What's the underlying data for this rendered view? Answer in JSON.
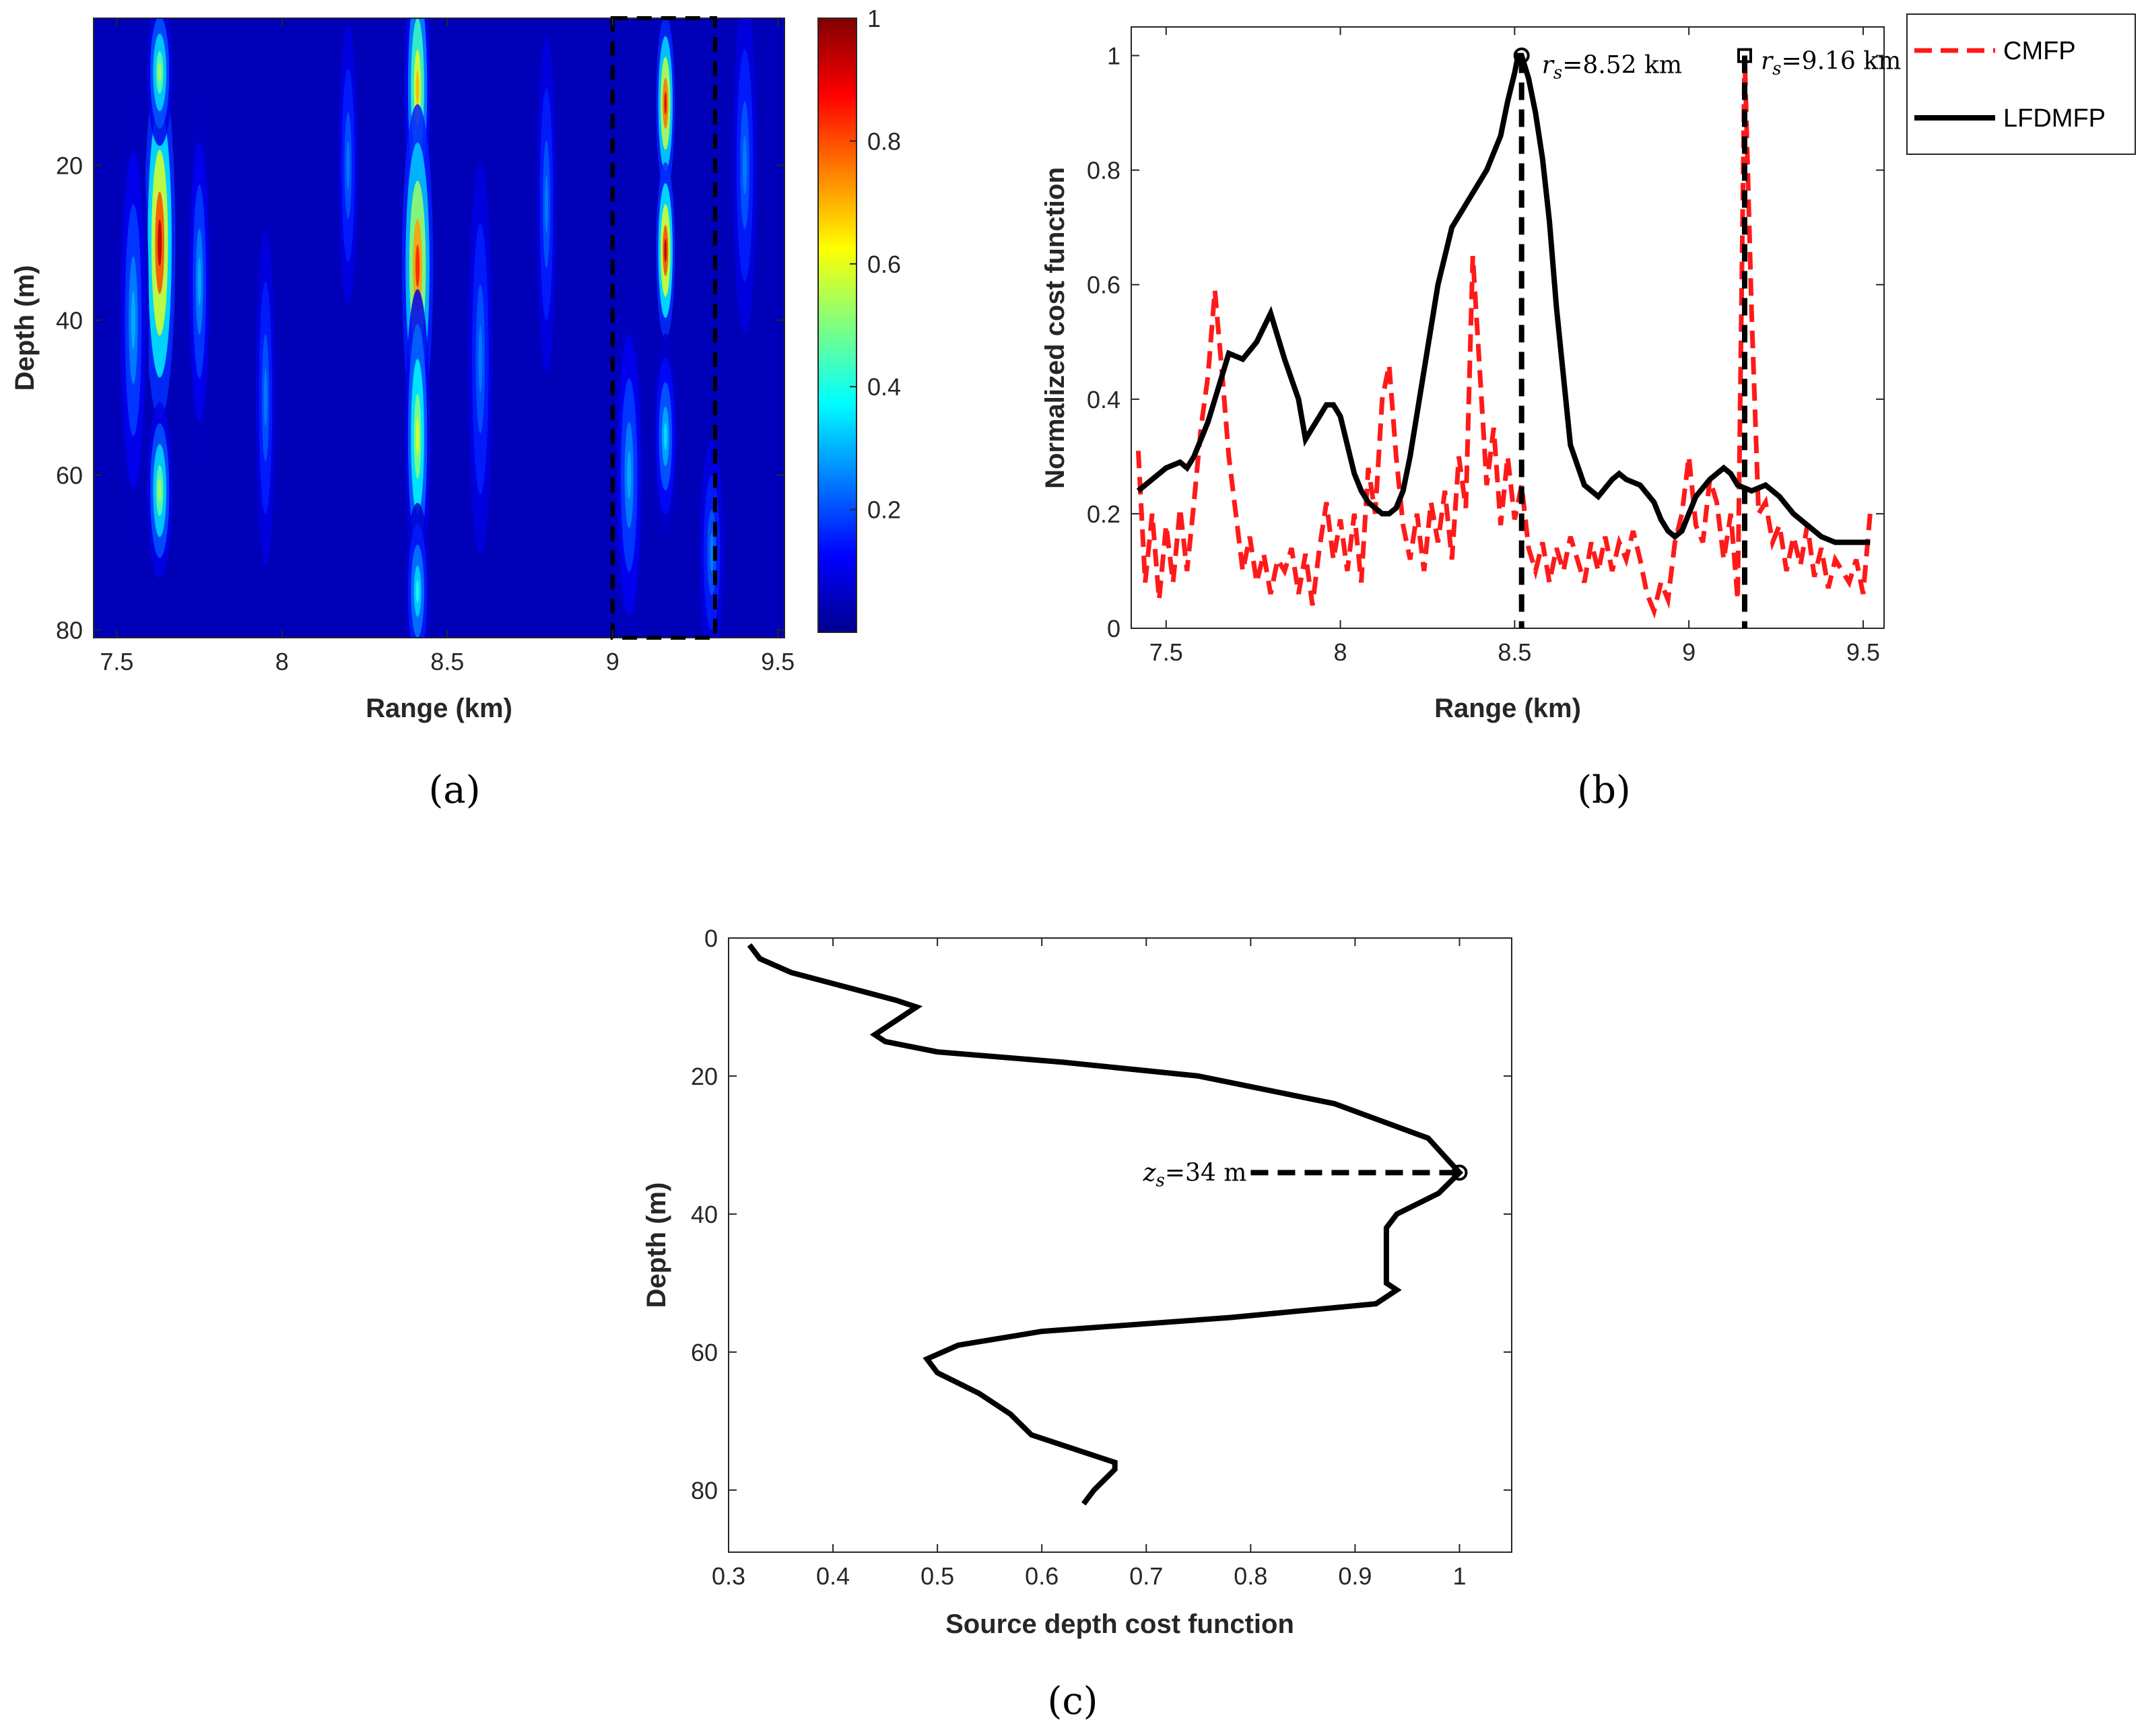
{
  "chart_data": [
    {
      "type": "heatmap",
      "panel_label": "(a)",
      "xlabel": "Range (km)",
      "ylabel": "Depth (m)",
      "xlim": [
        7.43,
        9.52
      ],
      "ylim": [
        81,
        1
      ],
      "xticks": [
        7.5,
        8,
        8.5,
        9,
        9.5
      ],
      "yticks": [
        20,
        40,
        60,
        80
      ],
      "colorbar": {
        "ticks": [
          0.2,
          0.4,
          0.6,
          0.8,
          1
        ],
        "range": [
          0,
          1
        ],
        "colormap": "jet"
      },
      "highlight_box": {
        "x_range": [
          9.0,
          9.31
        ],
        "depth_range": [
          1,
          81
        ]
      },
      "features": [
        {
          "range_km": 7.63,
          "depth_m": 30,
          "depth_span_m": 24,
          "range_span_km": 0.05,
          "value": 0.95
        },
        {
          "range_km": 7.63,
          "depth_m": 8,
          "depth_span_m": 10,
          "range_span_km": 0.04,
          "value": 0.55
        },
        {
          "range_km": 7.63,
          "depth_m": 62,
          "depth_span_m": 12,
          "range_span_km": 0.04,
          "value": 0.55
        },
        {
          "range_km": 8.41,
          "depth_m": 10,
          "depth_span_m": 18,
          "range_span_km": 0.04,
          "value": 0.7
        },
        {
          "range_km": 8.41,
          "depth_m": 33,
          "depth_span_m": 22,
          "range_span_km": 0.05,
          "value": 0.85
        },
        {
          "range_km": 8.41,
          "depth_m": 55,
          "depth_span_m": 20,
          "range_span_km": 0.04,
          "value": 0.6
        },
        {
          "range_km": 8.41,
          "depth_m": 75,
          "depth_span_m": 12,
          "range_span_km": 0.04,
          "value": 0.4
        },
        {
          "range_km": 9.16,
          "depth_m": 12,
          "depth_span_m": 12,
          "range_span_km": 0.03,
          "value": 0.9
        },
        {
          "range_km": 9.16,
          "depth_m": 31,
          "depth_span_m": 12,
          "range_span_km": 0.03,
          "value": 0.95
        },
        {
          "range_km": 9.16,
          "depth_m": 55,
          "depth_span_m": 14,
          "range_span_km": 0.04,
          "value": 0.35
        },
        {
          "range_km": 7.55,
          "depth_m": 40,
          "depth_span_m": 30,
          "range_span_km": 0.05,
          "value": 0.3
        },
        {
          "range_km": 7.75,
          "depth_m": 35,
          "depth_span_m": 25,
          "range_span_km": 0.04,
          "value": 0.3
        },
        {
          "range_km": 7.95,
          "depth_m": 50,
          "depth_span_m": 30,
          "range_span_km": 0.04,
          "value": 0.25
        },
        {
          "range_km": 8.2,
          "depth_m": 20,
          "depth_span_m": 25,
          "range_span_km": 0.04,
          "value": 0.25
        },
        {
          "range_km": 8.6,
          "depth_m": 45,
          "depth_span_m": 35,
          "range_span_km": 0.05,
          "value": 0.25
        },
        {
          "range_km": 8.8,
          "depth_m": 25,
          "depth_span_m": 30,
          "range_span_km": 0.04,
          "value": 0.25
        },
        {
          "range_km": 9.05,
          "depth_m": 60,
          "depth_span_m": 25,
          "range_span_km": 0.05,
          "value": 0.3
        },
        {
          "range_km": 9.4,
          "depth_m": 20,
          "depth_span_m": 30,
          "range_span_km": 0.05,
          "value": 0.25
        },
        {
          "range_km": 9.3,
          "depth_m": 70,
          "depth_span_m": 20,
          "range_span_km": 0.05,
          "value": 0.25
        }
      ]
    },
    {
      "type": "line",
      "panel_label": "(b)",
      "xlabel": "Range (km)",
      "ylabel": "Normalized cost function",
      "xlim": [
        7.4,
        9.56
      ],
      "ylim": [
        0,
        1.05
      ],
      "xticks": [
        7.5,
        8,
        8.5,
        9,
        9.5
      ],
      "yticks": [
        0,
        0.2,
        0.4,
        0.6,
        0.8,
        1
      ],
      "legend": "outside-top-right",
      "series": [
        {
          "name": "CMFP",
          "style": "dashed",
          "color": "#ff1a1a",
          "x": [
            7.42,
            7.44,
            7.46,
            7.48,
            7.5,
            7.52,
            7.54,
            7.56,
            7.58,
            7.6,
            7.62,
            7.64,
            7.66,
            7.68,
            7.7,
            7.72,
            7.74,
            7.76,
            7.78,
            7.8,
            7.82,
            7.84,
            7.86,
            7.88,
            7.9,
            7.92,
            7.94,
            7.96,
            7.98,
            8.0,
            8.02,
            8.04,
            8.06,
            8.08,
            8.1,
            8.12,
            8.14,
            8.16,
            8.18,
            8.2,
            8.22,
            8.24,
            8.26,
            8.28,
            8.3,
            8.32,
            8.34,
            8.36,
            8.38,
            8.4,
            8.42,
            8.44,
            8.46,
            8.48,
            8.5,
            8.52,
            8.54,
            8.56,
            8.58,
            8.6,
            8.62,
            8.64,
            8.66,
            8.68,
            8.7,
            8.72,
            8.74,
            8.76,
            8.78,
            8.8,
            8.82,
            8.84,
            8.86,
            8.88,
            8.9,
            8.92,
            8.94,
            8.96,
            8.98,
            9.0,
            9.02,
            9.04,
            9.06,
            9.08,
            9.1,
            9.12,
            9.14,
            9.16,
            9.18,
            9.2,
            9.22,
            9.24,
            9.26,
            9.28,
            9.3,
            9.32,
            9.34,
            9.36,
            9.38,
            9.4,
            9.42,
            9.44,
            9.46,
            9.48,
            9.5,
            9.52
          ],
          "values": [
            0.31,
            0.08,
            0.2,
            0.05,
            0.18,
            0.08,
            0.21,
            0.1,
            0.22,
            0.35,
            0.44,
            0.59,
            0.45,
            0.3,
            0.2,
            0.1,
            0.16,
            0.08,
            0.13,
            0.06,
            0.12,
            0.1,
            0.14,
            0.06,
            0.13,
            0.04,
            0.14,
            0.22,
            0.12,
            0.19,
            0.1,
            0.2,
            0.08,
            0.28,
            0.2,
            0.4,
            0.46,
            0.3,
            0.18,
            0.12,
            0.2,
            0.1,
            0.22,
            0.15,
            0.24,
            0.12,
            0.3,
            0.21,
            0.65,
            0.45,
            0.25,
            0.35,
            0.18,
            0.3,
            0.19,
            0.25,
            0.14,
            0.1,
            0.15,
            0.08,
            0.14,
            0.1,
            0.16,
            0.12,
            0.08,
            0.15,
            0.1,
            0.16,
            0.1,
            0.15,
            0.12,
            0.17,
            0.12,
            0.06,
            0.03,
            0.08,
            0.05,
            0.15,
            0.2,
            0.3,
            0.18,
            0.15,
            0.26,
            0.22,
            0.12,
            0.2,
            0.05,
            1.0,
            0.55,
            0.2,
            0.22,
            0.15,
            0.18,
            0.1,
            0.16,
            0.11,
            0.18,
            0.09,
            0.14,
            0.07,
            0.12,
            0.1,
            0.08,
            0.12,
            0.06,
            0.2
          ]
        },
        {
          "name": "LFDMFP",
          "style": "solid",
          "color": "#000000",
          "x": [
            7.42,
            7.46,
            7.5,
            7.54,
            7.56,
            7.58,
            7.62,
            7.66,
            7.68,
            7.72,
            7.76,
            7.8,
            7.84,
            7.88,
            7.9,
            7.92,
            7.94,
            7.96,
            7.98,
            8.0,
            8.02,
            8.04,
            8.06,
            8.08,
            8.1,
            8.12,
            8.14,
            8.16,
            8.18,
            8.2,
            8.24,
            8.28,
            8.32,
            8.36,
            8.38,
            8.42,
            8.46,
            8.48,
            8.5,
            8.51,
            8.52,
            8.53,
            8.54,
            8.56,
            8.58,
            8.6,
            8.62,
            8.66,
            8.7,
            8.74,
            8.78,
            8.8,
            8.82,
            8.86,
            8.9,
            8.92,
            8.94,
            8.96,
            8.98,
            9.0,
            9.02,
            9.06,
            9.1,
            9.12,
            9.14,
            9.18,
            9.22,
            9.26,
            9.3,
            9.34,
            9.38,
            9.42,
            9.46,
            9.5,
            9.52
          ],
          "values": [
            0.24,
            0.26,
            0.28,
            0.29,
            0.28,
            0.3,
            0.36,
            0.44,
            0.48,
            0.47,
            0.5,
            0.55,
            0.47,
            0.4,
            0.33,
            0.35,
            0.37,
            0.39,
            0.39,
            0.37,
            0.32,
            0.27,
            0.24,
            0.22,
            0.21,
            0.2,
            0.2,
            0.21,
            0.24,
            0.3,
            0.45,
            0.6,
            0.7,
            0.74,
            0.76,
            0.8,
            0.86,
            0.92,
            0.97,
            1.0,
            1.0,
            0.98,
            0.96,
            0.9,
            0.82,
            0.71,
            0.56,
            0.32,
            0.25,
            0.23,
            0.26,
            0.27,
            0.26,
            0.25,
            0.22,
            0.19,
            0.17,
            0.16,
            0.17,
            0.2,
            0.23,
            0.26,
            0.28,
            0.27,
            0.25,
            0.24,
            0.25,
            0.23,
            0.2,
            0.18,
            0.16,
            0.15,
            0.15,
            0.15,
            0.15
          ]
        }
      ],
      "annotations": [
        {
          "text": "rs=8.52 km",
          "x": 8.52,
          "y": 1.0,
          "marker": "circle"
        },
        {
          "text": "rs=9.16 km",
          "x": 9.16,
          "y": 1.0,
          "marker": "square"
        }
      ]
    },
    {
      "type": "line",
      "panel_label": "(c)",
      "xlabel": "Source depth cost function",
      "ylabel": "Depth (m)",
      "xlim": [
        0.3,
        1.05
      ],
      "ylim": [
        0,
        89
      ],
      "y_reversed": true,
      "xticks": [
        0.3,
        0.4,
        0.5,
        0.6,
        0.7,
        0.8,
        0.9,
        1
      ],
      "yticks": [
        0,
        20,
        40,
        60,
        80
      ],
      "series": [
        {
          "name": "Source depth cost function",
          "color": "#000000",
          "cost": [
            0.32,
            0.33,
            0.36,
            0.41,
            0.46,
            0.48,
            0.46,
            0.44,
            0.45,
            0.5,
            0.62,
            0.75,
            0.88,
            0.97,
            1.0,
            0.98,
            0.94,
            0.93,
            0.93,
            0.93,
            0.93,
            0.94,
            0.92,
            0.78,
            0.6,
            0.52,
            0.49,
            0.5,
            0.54,
            0.57,
            0.59,
            0.63,
            0.67,
            0.67,
            0.65,
            0.64
          ],
          "depth_m": [
            1,
            3,
            5,
            7,
            9,
            10,
            12,
            14,
            15,
            16.5,
            18,
            20,
            24,
            29,
            34,
            37,
            40,
            42,
            45,
            48,
            50,
            51,
            53,
            55,
            57,
            59,
            61,
            63,
            66,
            69,
            72,
            74,
            76,
            77,
            80,
            82
          ]
        }
      ],
      "annotations": [
        {
          "text": "zs=34 m",
          "x": 1.0,
          "y": 34,
          "marker": "circle"
        }
      ]
    }
  ]
}
